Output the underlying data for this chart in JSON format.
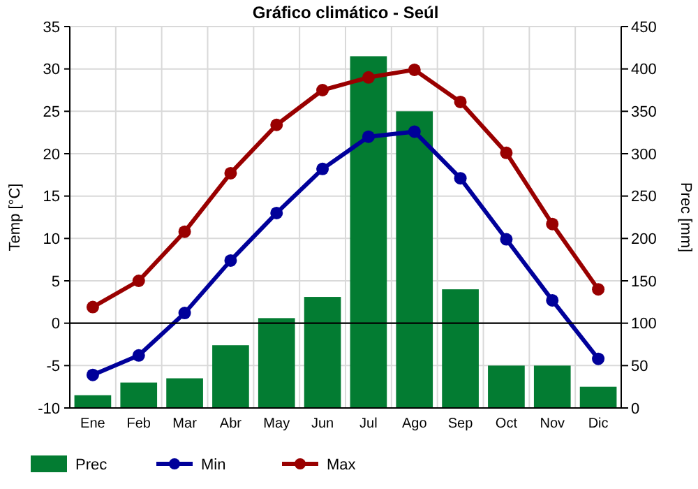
{
  "chart_data": {
    "type": "bar",
    "title": "Gráfico climático - Seúl",
    "ylabel": "Temp [°C]",
    "y2label": "Prec [mm]",
    "categories": [
      "Ene",
      "Feb",
      "Mar",
      "Abr",
      "May",
      "Jun",
      "Jul",
      "Ago",
      "Sep",
      "Oct",
      "Nov",
      "Dic"
    ],
    "series": [
      {
        "name": "Prec",
        "axis": "y2",
        "color": "#037c32",
        "values": [
          15,
          30,
          35,
          74,
          106,
          131,
          415,
          350,
          140,
          50,
          50,
          25
        ]
      },
      {
        "name": "Min",
        "type": "line",
        "color": "#00009a",
        "values": [
          -6.1,
          -3.8,
          1.2,
          7.4,
          13,
          18.2,
          22,
          22.6,
          17.1,
          9.9,
          2.7,
          -4.2
        ]
      },
      {
        "name": "Max",
        "type": "line",
        "color": "#990000",
        "values": [
          1.9,
          5,
          10.8,
          17.7,
          23.4,
          27.5,
          29,
          29.9,
          26.1,
          20.1,
          11.7,
          4
        ]
      }
    ],
    "ylim": [
      -10,
      35
    ],
    "yticks": [
      -10,
      -5,
      0,
      5,
      10,
      15,
      20,
      25,
      30,
      35
    ],
    "y2lim": [
      0,
      450
    ],
    "y2ticks": [
      0,
      50,
      100,
      150,
      200,
      250,
      300,
      350,
      400,
      450
    ],
    "ref_lines": [
      {
        "axis": "y",
        "value": 0,
        "color": "#000000"
      }
    ],
    "grid": true,
    "legend": "bottom",
    "marker": "circle"
  }
}
